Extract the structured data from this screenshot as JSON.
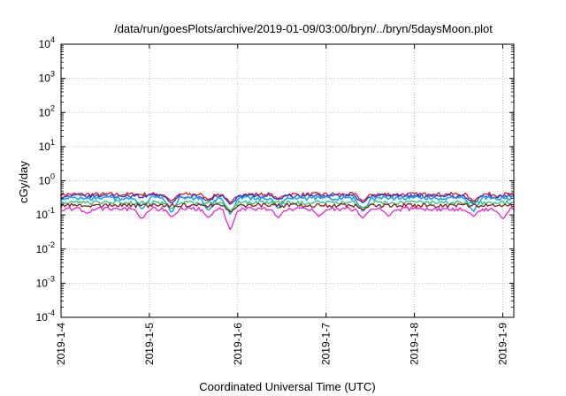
{
  "chart_data": {
    "type": "line",
    "title": "/data/run/goesPlots/archive/2019-01-09/03:00/bryn/../bryn/5daysMoon.plot",
    "xlabel": "Coordinated Universal Time (UTC)",
    "ylabel": "cGy/day",
    "y_scale": "log",
    "ylim": [
      0.0001,
      10000
    ],
    "xlim": [
      "2019-01-04T00:00",
      "2019-01-09T03:00"
    ],
    "grid": true,
    "y_ticks": [
      {
        "base": "10",
        "exp": "-4"
      },
      {
        "base": "10",
        "exp": "-3"
      },
      {
        "base": "10",
        "exp": "-2"
      },
      {
        "base": "10",
        "exp": "-1"
      },
      {
        "base": "10",
        "exp": "0"
      },
      {
        "base": "10",
        "exp": "1"
      },
      {
        "base": "10",
        "exp": "2"
      },
      {
        "base": "10",
        "exp": "3"
      },
      {
        "base": "10",
        "exp": "4"
      }
    ],
    "x_ticks": [
      "2019-1-4",
      "2019-1-5",
      "2019-1-6",
      "2019-1-7",
      "2019-1-8",
      "2019-1-9"
    ],
    "series": [
      {
        "color": "#e8141b",
        "level": 0.4,
        "dips": [
          [
            "2019-01-05T06:00",
            0.25
          ],
          [
            "2019-01-05T16:00",
            0.28
          ],
          [
            "2019-01-05T22:00",
            0.22
          ],
          [
            "2019-01-06T11:00",
            0.3
          ],
          [
            "2019-01-07T10:00",
            0.25
          ],
          [
            "2019-01-08T16:00",
            0.25
          ]
        ]
      },
      {
        "color": "#2030e0",
        "level": 0.36,
        "dips": [
          [
            "2019-01-05T06:00",
            0.22
          ],
          [
            "2019-01-05T16:00",
            0.25
          ],
          [
            "2019-01-05T22:00",
            0.2
          ],
          [
            "2019-01-06T11:00",
            0.28
          ],
          [
            "2019-01-07T10:00",
            0.22
          ],
          [
            "2019-01-08T16:00",
            0.22
          ]
        ]
      },
      {
        "color": "#1aa8f0",
        "level": 0.31,
        "dips": [
          [
            "2019-01-04T22:00",
            0.14
          ],
          [
            "2019-01-05T06:00",
            0.11
          ],
          [
            "2019-01-05T16:00",
            0.13
          ],
          [
            "2019-01-05T22:00",
            0.1
          ],
          [
            "2019-01-06T11:00",
            0.15
          ],
          [
            "2019-01-07T10:00",
            0.12
          ],
          [
            "2019-01-08T16:00",
            0.12
          ]
        ]
      },
      {
        "color": "#1fc97a",
        "level": 0.23,
        "dips": [
          [
            "2019-01-05T06:00",
            0.15
          ],
          [
            "2019-01-05T22:00",
            0.13
          ],
          [
            "2019-01-07T10:00",
            0.16
          ]
        ]
      },
      {
        "color": "#8c1a1a",
        "level": 0.19,
        "dips": [
          [
            "2019-01-05T22:00",
            0.12
          ],
          [
            "2019-01-07T10:00",
            0.14
          ]
        ]
      },
      {
        "color": "#f020e0",
        "level": 0.15,
        "dips": [
          [
            "2019-01-04T07:00",
            0.11
          ],
          [
            "2019-01-04T22:00",
            0.075
          ],
          [
            "2019-01-05T06:00",
            0.085
          ],
          [
            "2019-01-05T16:00",
            0.08
          ],
          [
            "2019-01-05T22:00",
            0.035
          ],
          [
            "2019-01-06T11:00",
            0.08
          ],
          [
            "2019-01-06T22:00",
            0.09
          ],
          [
            "2019-01-07T10:00",
            0.08
          ],
          [
            "2019-01-07T17:00",
            0.09
          ],
          [
            "2019-01-08T16:00",
            0.09
          ],
          [
            "2019-01-09T00:00",
            0.075
          ]
        ]
      }
    ]
  }
}
